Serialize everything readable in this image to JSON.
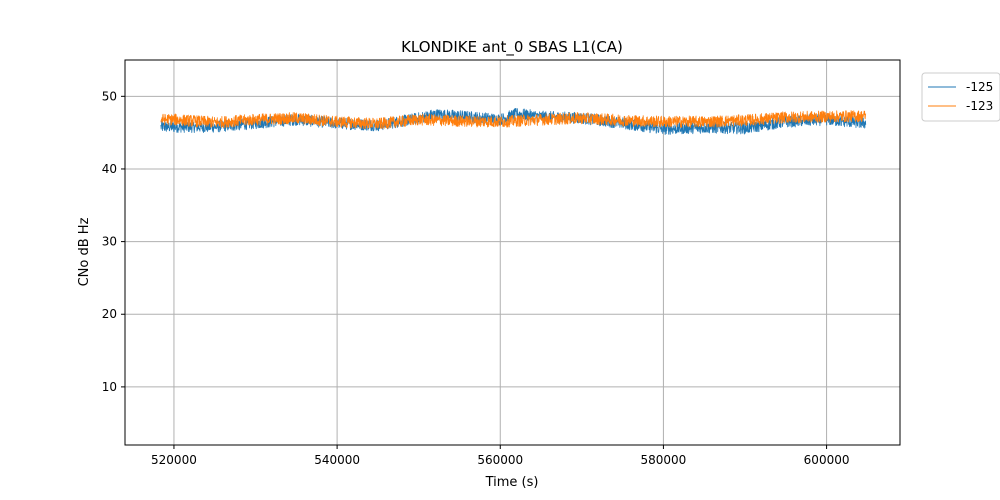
{
  "chart_data": {
    "type": "line",
    "title": "KLONDIKE ant_0 SBAS L1(CA)",
    "xlabel": "Time (s)",
    "ylabel": "CNo dB Hz",
    "xlim": [
      514000,
      609000
    ],
    "ylim": [
      2,
      55
    ],
    "xticks": [
      520000,
      540000,
      560000,
      580000,
      600000
    ],
    "yticks": [
      10,
      20,
      30,
      40,
      50
    ],
    "grid": true,
    "legend_position": "outside-top-right",
    "series": [
      {
        "name": "-125",
        "color": "#1f77b4",
        "x": [
          518400,
          520000,
          525000,
          530000,
          535000,
          540000,
          545000,
          550000,
          552000,
          555000,
          560000,
          562000,
          565000,
          570000,
          575000,
          580000,
          585000,
          590000,
          595000,
          600000,
          604800
        ],
        "y": [
          45.8,
          45.8,
          45.8,
          46.3,
          46.8,
          46.3,
          46.0,
          47.0,
          47.5,
          47.3,
          46.8,
          47.6,
          47.2,
          47.0,
          46.3,
          45.5,
          45.7,
          45.6,
          46.5,
          46.8,
          46.3
        ]
      },
      {
        "name": "-123",
        "color": "#ff7f0e",
        "x": [
          518400,
          520000,
          525000,
          530000,
          535000,
          540000,
          545000,
          550000,
          555000,
          560000,
          565000,
          570000,
          575000,
          580000,
          585000,
          590000,
          595000,
          600000,
          604800
        ],
        "y": [
          46.8,
          46.8,
          46.4,
          46.8,
          47.0,
          46.5,
          46.2,
          46.8,
          46.6,
          46.5,
          46.8,
          47.0,
          46.7,
          46.5,
          46.5,
          46.7,
          47.1,
          47.2,
          47.3
        ]
      }
    ]
  }
}
